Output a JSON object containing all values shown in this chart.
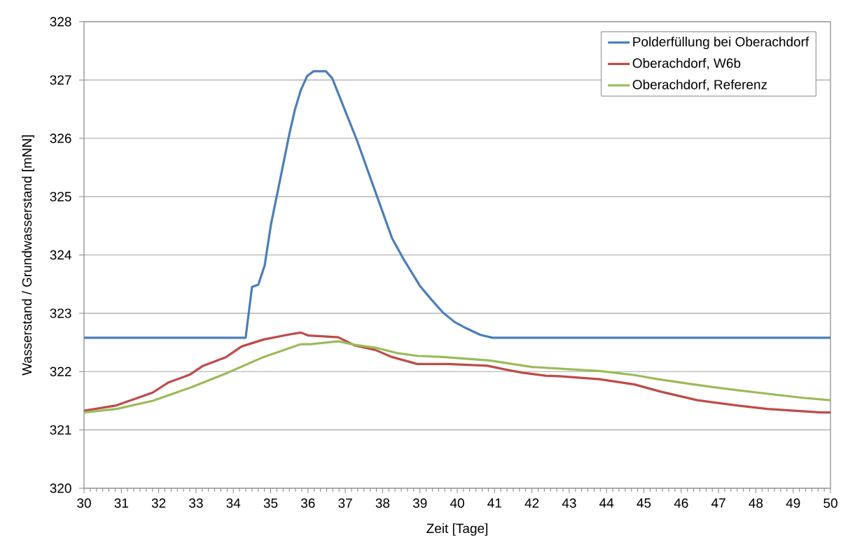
{
  "chart_data": {
    "type": "line",
    "xlabel": "Zeit [Tage]",
    "ylabel": "Wasserstand / Grundwasserstand [mNN]",
    "xlim": [
      30,
      50
    ],
    "ylim": [
      320,
      328
    ],
    "xticks": [
      30,
      {
        "value": 30.167,
        "label": null
      },
      {
        "value": 30.333,
        "label": null
      },
      {
        "value": 30.5,
        "label": null
      },
      {
        "value": 30.667,
        "label": null
      },
      {
        "value": 30.833,
        "label": null
      },
      31,
      {
        "value": 31.167,
        "label": null
      },
      {
        "value": 31.333,
        "label": null
      },
      {
        "value": 31.5,
        "label": null
      },
      {
        "value": 31.667,
        "label": null
      },
      {
        "value": 31.833,
        "label": null
      },
      32,
      {
        "value": 32.167,
        "label": null
      },
      {
        "value": 32.333,
        "label": null
      },
      {
        "value": 32.5,
        "label": null
      },
      {
        "value": 32.667,
        "label": null
      },
      {
        "value": 32.833,
        "label": null
      },
      33,
      {
        "value": 33.167,
        "label": null
      },
      {
        "value": 33.333,
        "label": null
      },
      {
        "value": 33.5,
        "label": null
      },
      {
        "value": 33.667,
        "label": null
      },
      {
        "value": 33.833,
        "label": null
      },
      34,
      {
        "value": 34.167,
        "label": null
      },
      {
        "value": 34.333,
        "label": null
      },
      {
        "value": 34.5,
        "label": null
      },
      {
        "value": 34.667,
        "label": null
      },
      {
        "value": 34.833,
        "label": null
      },
      35,
      {
        "value": 35.167,
        "label": null
      },
      {
        "value": 35.333,
        "label": null
      },
      {
        "value": 35.5,
        "label": null
      },
      {
        "value": 35.667,
        "label": null
      },
      {
        "value": 35.833,
        "label": null
      },
      36,
      {
        "value": 36.167,
        "label": null
      },
      {
        "value": 36.333,
        "label": null
      },
      {
        "value": 36.5,
        "label": null
      },
      {
        "value": 36.667,
        "label": null
      },
      {
        "value": 36.833,
        "label": null
      },
      37,
      {
        "value": 37.167,
        "label": null
      },
      {
        "value": 37.333,
        "label": null
      },
      {
        "value": 37.5,
        "label": null
      },
      {
        "value": 37.667,
        "label": null
      },
      {
        "value": 37.833,
        "label": null
      },
      38,
      {
        "value": 38.167,
        "label": null
      },
      {
        "value": 38.333,
        "label": null
      },
      {
        "value": 38.5,
        "label": null
      },
      {
        "value": 38.667,
        "label": null
      },
      {
        "value": 38.833,
        "label": null
      },
      39,
      {
        "value": 39.167,
        "label": null
      },
      {
        "value": 39.333,
        "label": null
      },
      {
        "value": 39.5,
        "label": null
      },
      {
        "value": 39.667,
        "label": null
      },
      {
        "value": 39.833,
        "label": null
      },
      40,
      {
        "value": 40.167,
        "label": null
      },
      {
        "value": 40.333,
        "label": null
      },
      {
        "value": 40.5,
        "label": null
      },
      {
        "value": 40.667,
        "label": null
      },
      {
        "value": 40.833,
        "label": null
      },
      41,
      {
        "value": 41.167,
        "label": null
      },
      {
        "value": 41.333,
        "label": null
      },
      {
        "value": 41.5,
        "label": null
      },
      {
        "value": 41.667,
        "label": null
      },
      {
        "value": 41.833,
        "label": null
      },
      42,
      {
        "value": 42.167,
        "label": null
      },
      {
        "value": 42.333,
        "label": null
      },
      {
        "value": 42.5,
        "label": null
      },
      {
        "value": 42.667,
        "label": null
      },
      {
        "value": 42.833,
        "label": null
      },
      43,
      {
        "value": 43.167,
        "label": null
      },
      {
        "value": 43.333,
        "label": null
      },
      {
        "value": 43.5,
        "label": null
      },
      {
        "value": 43.667,
        "label": null
      },
      {
        "value": 43.833,
        "label": null
      },
      44,
      {
        "value": 44.167,
        "label": null
      },
      {
        "value": 44.333,
        "label": null
      },
      {
        "value": 44.5,
        "label": null
      },
      {
        "value": 44.667,
        "label": null
      },
      {
        "value": 44.833,
        "label": null
      },
      45,
      {
        "value": 45.167,
        "label": null
      },
      {
        "value": 45.333,
        "label": null
      },
      {
        "value": 45.5,
        "label": null
      },
      {
        "value": 45.667,
        "label": null
      },
      {
        "value": 45.833,
        "label": null
      },
      46,
      {
        "value": 46.167,
        "label": null
      },
      {
        "value": 46.333,
        "label": null
      },
      {
        "value": 46.5,
        "label": null
      },
      {
        "value": 46.667,
        "label": null
      },
      {
        "value": 46.833,
        "label": null
      },
      47,
      {
        "value": 47.167,
        "label": null
      },
      {
        "value": 47.333,
        "label": null
      },
      {
        "value": 47.5,
        "label": null
      },
      {
        "value": 47.667,
        "label": null
      },
      {
        "value": 47.833,
        "label": null
      },
      48,
      {
        "value": 48.167,
        "label": null
      },
      {
        "value": 48.333,
        "label": null
      },
      {
        "value": 48.5,
        "label": null
      },
      {
        "value": 48.667,
        "label": null
      },
      {
        "value": 48.833,
        "label": null
      },
      49,
      {
        "value": 49.167,
        "label": null
      },
      {
        "value": 49.333,
        "label": null
      },
      {
        "value": 49.5,
        "label": null
      },
      {
        "value": 49.667,
        "label": null
      },
      {
        "value": 49.833,
        "label": null
      },
      50
    ],
    "yticks": [
      320,
      321,
      322,
      323,
      324,
      325,
      326,
      327,
      328
    ],
    "grid": "y",
    "legend": "top right",
    "series": [
      {
        "name": "Polderfüllung bei Oberachdorf",
        "color": "#4a7ebb",
        "x": [
          30,
          34.33,
          34.5,
          34.67,
          34.84,
          35.01,
          35.19,
          35.5,
          35.65,
          35.81,
          35.98,
          36.15,
          36.48,
          36.65,
          37.31,
          37.87,
          38.25,
          38.56,
          39.0,
          39.3,
          39.62,
          39.93,
          40.25,
          40.62,
          40.95,
          50
        ],
        "values": [
          322.58,
          322.58,
          323.45,
          323.49,
          323.82,
          324.53,
          325.09,
          326.07,
          326.49,
          326.83,
          327.07,
          327.15,
          327.15,
          327.03,
          325.97,
          324.97,
          324.29,
          323.93,
          323.47,
          323.24,
          323.01,
          322.85,
          322.74,
          322.63,
          322.58,
          322.58
        ]
      },
      {
        "name": "Oberachdorf, W6b",
        "color": "#be4b48",
        "x": [
          30,
          30.87,
          31.84,
          32.25,
          32.84,
          33.19,
          33.81,
          34.22,
          34.81,
          35.44,
          35.81,
          36.0,
          36.25,
          36.81,
          37.25,
          37.81,
          38.25,
          38.93,
          39.75,
          40.81,
          41.25,
          41.75,
          42.37,
          42.75,
          43.81,
          44.75,
          45.43,
          46.43,
          47.49,
          48.31,
          49.24,
          49.74,
          50
        ],
        "values": [
          321.33,
          321.42,
          321.64,
          321.81,
          321.95,
          322.1,
          322.25,
          322.43,
          322.55,
          322.63,
          322.67,
          322.62,
          322.61,
          322.59,
          322.45,
          322.37,
          322.25,
          322.13,
          322.13,
          322.1,
          322.04,
          321.98,
          321.93,
          321.92,
          321.87,
          321.78,
          321.66,
          321.51,
          321.42,
          321.36,
          321.32,
          321.3,
          321.3
        ]
      },
      {
        "name": "Oberachdorf, Referenz",
        "color": "#9bbb59",
        "x": [
          30,
          30.87,
          31.84,
          32.87,
          33.81,
          34.81,
          35.81,
          36.06,
          36.81,
          37.25,
          37.81,
          38.37,
          38.93,
          39.62,
          40.87,
          42.0,
          43.0,
          43.81,
          44.75,
          45.38,
          46.44,
          47.51,
          48.45,
          49.26,
          50
        ],
        "values": [
          321.3,
          321.36,
          321.5,
          321.73,
          321.97,
          322.25,
          322.47,
          322.47,
          322.52,
          322.46,
          322.41,
          322.32,
          322.27,
          322.25,
          322.19,
          322.08,
          322.04,
          322.01,
          321.94,
          321.87,
          321.77,
          321.68,
          321.61,
          321.55,
          321.51
        ]
      }
    ]
  }
}
